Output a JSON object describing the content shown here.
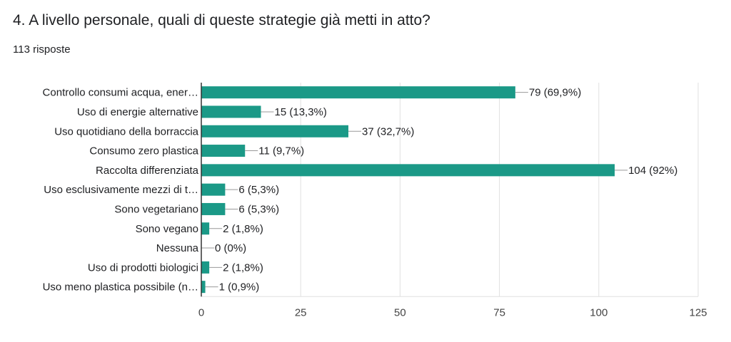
{
  "question": {
    "title": "4. A livello personale, quali di queste strategie già metti in atto?",
    "responses": "113 risposte"
  },
  "colors": {
    "bar": "#1b9987",
    "grid": "#e0e0e0",
    "axis": "#333333",
    "leader": "#999999"
  },
  "chart_data": {
    "type": "bar",
    "orientation": "horizontal",
    "categories": [
      "Controllo consumi acqua, ener…",
      "Uso di energie alternative",
      "Uso quotidiano della borraccia",
      "Consumo zero plastica",
      "Raccolta differenziata",
      "Uso esclusivamente mezzi di t…",
      "Sono vegetariano",
      "Sono vegano",
      "Nessuna",
      "Uso di prodotti biologici",
      "Uso meno plastica possibile (n…"
    ],
    "values": [
      79,
      15,
      37,
      11,
      104,
      6,
      6,
      2,
      0,
      2,
      1
    ],
    "data_labels": [
      "79 (69,9%)",
      "15 (13,3%)",
      "37 (32,7%)",
      "11 (9,7%)",
      "104 (92%)",
      "6 (5,3%)",
      "6 (5,3%)",
      "2 (1,8%)",
      "0 (0%)",
      "2 (1,8%)",
      "1 (0,9%)"
    ],
    "xlim": [
      0,
      125
    ],
    "xticks": [
      0,
      25,
      50,
      75,
      100,
      125
    ],
    "xtick_labels": [
      "0",
      "25",
      "50",
      "75",
      "100",
      "125"
    ],
    "grid": true
  }
}
